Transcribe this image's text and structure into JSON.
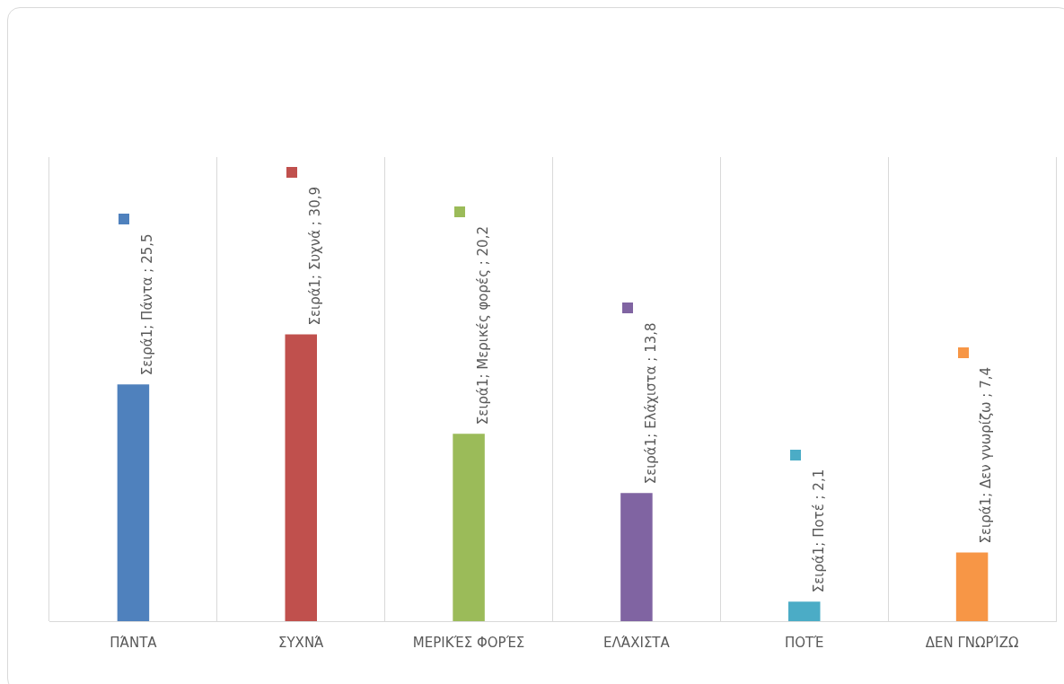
{
  "chart_data": {
    "type": "bar",
    "categories": [
      "ΠΆΝΤΑ",
      "ΣΥΧΝΆ",
      "ΜΕΡΙΚΈΣ ΦΟΡΈΣ",
      "ΕΛΆΧΙΣΤΑ",
      "ΠΟΤΈ",
      "ΔΕΝ ΓΝΩΡΊΖΩ"
    ],
    "values": [
      25.5,
      30.9,
      20.2,
      13.8,
      2.1,
      7.4
    ],
    "colors": [
      "#4f81bd",
      "#c0504d",
      "#9bbb59",
      "#8064a2",
      "#4bacc6",
      "#f79646"
    ],
    "value_labels": [
      "Σειρά1; Πάντα ; 25,5",
      "Σειρά1; Συχνά ; 30,9",
      "Σειρά1; Μερικές φορές ; 20,2",
      "Σειρά1; Ελάχιστα ; 13,8",
      "Σειρά1; Ποτέ ; 2,1",
      "Σειρά1; Δεν γνωρίζω ; 7,4"
    ],
    "ylim": [
      0,
      50
    ],
    "tick_labels": "x",
    "grid": "x",
    "legend": false
  }
}
